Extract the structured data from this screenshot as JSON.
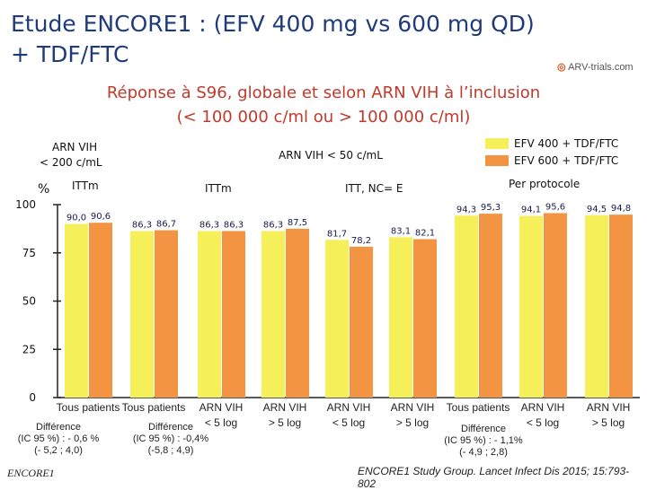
{
  "title_line1": "Etude ENCORE1 : (EFV 400 mg vs 600 mg QD)",
  "title_line2": "+ TDF/FTC",
  "logo_text": "ARV-trials.com",
  "subtitle_line1": "Réponse à S96, globale et selon ARN VIH à l’inclusion",
  "subtitle_line2": "(< 100 000 c/ml ou > 100 000 c/ml)",
  "header_left_line1": "ARN VIH",
  "header_left_line2": "< 200 c/mL",
  "header_center": "ARN VIH < 50 c/mL",
  "header_percent": "%",
  "group_labels": [
    "ITTm",
    "ITTm",
    "ITT, NC= E",
    "Per protocole"
  ],
  "colors": {
    "efv400": "#f5ef5a",
    "efv600": "#f29441",
    "title": "#1f3b7a",
    "subtitle": "#c0392b",
    "axis": "#222222"
  },
  "chart_data": {
    "type": "bar",
    "title": "Réponse à S96, globale et selon ARN VIH à l’inclusion",
    "ylabel": "%",
    "ylim": [
      0,
      100
    ],
    "yticks": [
      0,
      25,
      50,
      75,
      100
    ],
    "categories": [
      "Tous patients",
      "Tous patients",
      "ARN VIH < 5 log",
      "ARN VIH > 5 log",
      "ARN VIH < 5 log",
      "ARN VIH > 5 log",
      "Tous patients",
      "ARN VIH < 5 log",
      "ARN VIH > 5 log"
    ],
    "category_lines": [
      [
        "Tous patients"
      ],
      [
        "Tous patients"
      ],
      [
        "ARN VIH",
        "< 5 log"
      ],
      [
        "ARN VIH",
        "> 5 log"
      ],
      [
        "ARN VIH",
        "< 5 log"
      ],
      [
        "ARN VIH",
        "> 5 log"
      ],
      [
        "Tous patients"
      ],
      [
        "ARN VIH",
        "< 5 log"
      ],
      [
        "ARN VIH",
        "> 5 log"
      ]
    ],
    "series": [
      {
        "name": "EFV 400 + TDF/FTC",
        "values": [
          90.0,
          86.3,
          86.3,
          86.3,
          81.7,
          83.1,
          94.3,
          94.1,
          94.5
        ],
        "labels": [
          "90,0",
          "86,3",
          "86,3",
          "86,3",
          "81,7",
          "83,1",
          "94,3",
          "94,1",
          "94,5"
        ]
      },
      {
        "name": "EFV 600 + TDF/FTC",
        "values": [
          90.6,
          86.7,
          86.3,
          87.5,
          78.2,
          82.1,
          95.3,
          95.6,
          94.8
        ],
        "labels": [
          "90,6",
          "86,7",
          "86,3",
          "87,5",
          "78,2",
          "82,1",
          "95,3",
          "95,6",
          "94,8"
        ]
      }
    ],
    "legend_position": "top-right"
  },
  "differences": [
    {
      "lines": [
        "Différence",
        "(IC 95 %) : - 0,6 %",
        "(- 5,2 ; 4,0)"
      ]
    },
    {
      "lines": [
        "Différence",
        "(IC 95 %) : -0,4%",
        "(-5,8 ; 4,9)"
      ]
    },
    {
      "lines": [
        "Différence",
        "(IC 95 %) : - 1,1%",
        "(- 4,9 ; 2,8)"
      ]
    }
  ],
  "footer_left": "ENCORE1",
  "footer_right": "ENCORE1 Study Group. Lancet Infect Dis 2015; 15:793-802"
}
